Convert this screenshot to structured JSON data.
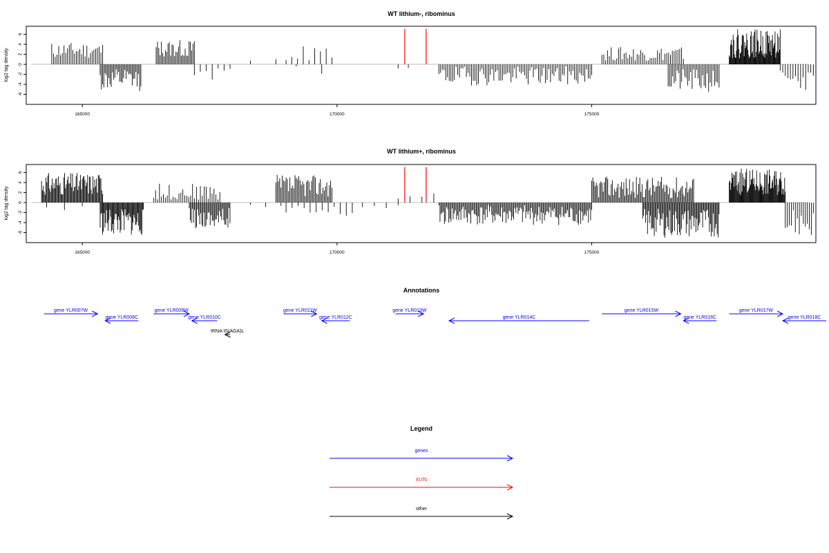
{
  "colors": {
    "genes": "#0000FF",
    "xuts": "#FF0000",
    "other": "#000000",
    "baseline": "#BEBEBE"
  },
  "chart_data": [
    {
      "type": "bar",
      "title": "WT lithium-, ribominus",
      "ylabel": "log2 tag density",
      "xlim": [
        163900,
        179400
      ],
      "ylim": [
        -8,
        7.6
      ],
      "xticks": [
        {
          "value": 165000,
          "label": "165000"
        },
        {
          "value": 170000,
          "label": "170000"
        },
        {
          "value": 175000,
          "label": "175000"
        }
      ],
      "yticks": [
        {
          "value": 6,
          "label": "6"
        },
        {
          "value": 4,
          "label": "4"
        },
        {
          "value": 2,
          "label": "2"
        },
        {
          "value": 0,
          "label": "0"
        },
        {
          "value": -2,
          "label": "-2"
        },
        {
          "value": -4,
          "label": "-4"
        },
        {
          "value": -6,
          "label": "-6"
        }
      ],
      "xut_marks": [
        171330,
        171750
      ],
      "regions": [
        {
          "start": 164400,
          "end": 165400,
          "min": 1.2,
          "max": 4.4,
          "n": 30,
          "seed": 11
        },
        {
          "start": 165350,
          "end": 166150,
          "min": -5.4,
          "max": -1.0,
          "n": 34,
          "seed": 12
        },
        {
          "start": 166450,
          "end": 167200,
          "min": 1.4,
          "max": 4.9,
          "n": 30,
          "seed": 13
        },
        {
          "start": 167200,
          "end": 167900,
          "min": -3.2,
          "max": -0.7,
          "n": 7,
          "seed": 14
        },
        {
          "start": 168300,
          "end": 168800,
          "min": 0.5,
          "max": 1.6,
          "n": 2,
          "seed": 15
        },
        {
          "start": 169000,
          "end": 169900,
          "min": 0.6,
          "max": 3.7,
          "n": 9,
          "seed": 16
        },
        {
          "start": 169200,
          "end": 169700,
          "min": -2.0,
          "max": -0.3,
          "n": 2,
          "seed": 17
        },
        {
          "start": 171200,
          "end": 171400,
          "min": -1.6,
          "max": -0.6,
          "n": 2,
          "seed": 18
        },
        {
          "start": 172000,
          "end": 175000,
          "min": -4.2,
          "max": -0.4,
          "n": 90,
          "seed": 19
        },
        {
          "start": 175200,
          "end": 176800,
          "min": 0.7,
          "max": 3.5,
          "n": 45,
          "seed": 20
        },
        {
          "start": 176500,
          "end": 177500,
          "min": -5.6,
          "max": -1.0,
          "n": 35,
          "seed": 21
        },
        {
          "start": 177700,
          "end": 178700,
          "min": 1.2,
          "max": 7.0,
          "n": 80,
          "seed": 22
        },
        {
          "start": 178700,
          "end": 179350,
          "min": -5.2,
          "max": -1.0,
          "n": 14,
          "seed": 23
        }
      ]
    },
    {
      "type": "bar",
      "title": "WT lithium+, ribominus",
      "ylabel": "log2 tag density",
      "xlim": [
        163900,
        179400
      ],
      "ylim": [
        -8,
        7.6
      ],
      "xticks": [
        {
          "value": 165000,
          "label": "165000"
        },
        {
          "value": 170000,
          "label": "170000"
        },
        {
          "value": 175000,
          "label": "175000"
        }
      ],
      "yticks": [
        {
          "value": 6,
          "label": "6"
        },
        {
          "value": 4,
          "label": "4"
        },
        {
          "value": 2,
          "label": "2"
        },
        {
          "value": 0,
          "label": "0"
        },
        {
          "value": -2,
          "label": "-2"
        },
        {
          "value": -4,
          "label": "-4"
        },
        {
          "value": -6,
          "label": "-6"
        }
      ],
      "xut_marks": [
        171330,
        171750
      ],
      "regions": [
        {
          "start": 164200,
          "end": 165400,
          "min": 1.5,
          "max": 6.0,
          "n": 70,
          "seed": 31
        },
        {
          "start": 164300,
          "end": 165000,
          "min": -1.5,
          "max": -0.3,
          "n": 3,
          "seed": 32
        },
        {
          "start": 165350,
          "end": 166200,
          "min": -6.6,
          "max": -1.2,
          "n": 55,
          "seed": 33
        },
        {
          "start": 166400,
          "end": 167700,
          "min": 0.5,
          "max": 3.8,
          "n": 35,
          "seed": 34
        },
        {
          "start": 167100,
          "end": 167900,
          "min": -5.2,
          "max": -1.0,
          "n": 40,
          "seed": 35
        },
        {
          "start": 168300,
          "end": 168900,
          "min": -1.0,
          "max": -0.3,
          "n": 3,
          "seed": 36
        },
        {
          "start": 168800,
          "end": 169900,
          "min": 1.2,
          "max": 5.6,
          "n": 45,
          "seed": 37
        },
        {
          "start": 169000,
          "end": 170300,
          "min": -3.4,
          "max": -0.4,
          "n": 12,
          "seed": 38
        },
        {
          "start": 170500,
          "end": 171200,
          "min": -1.2,
          "max": -0.3,
          "n": 4,
          "seed": 39
        },
        {
          "start": 171200,
          "end": 171900,
          "min": 0.5,
          "max": 2.5,
          "n": 4,
          "seed": 40
        },
        {
          "start": 172000,
          "end": 175000,
          "min": -4.5,
          "max": -0.5,
          "n": 140,
          "seed": 41
        },
        {
          "start": 175000,
          "end": 177000,
          "min": 0.8,
          "max": 5.2,
          "n": 90,
          "seed": 42
        },
        {
          "start": 176000,
          "end": 177500,
          "min": -7.0,
          "max": -1.2,
          "n": 80,
          "seed": 43
        },
        {
          "start": 177700,
          "end": 178800,
          "min": 1.5,
          "max": 6.8,
          "n": 85,
          "seed": 44
        },
        {
          "start": 178800,
          "end": 179350,
          "min": -7.0,
          "max": -1.0,
          "n": 15,
          "seed": 45
        }
      ]
    }
  ],
  "annotations": {
    "title": "Annotations",
    "features": [
      {
        "label": "gene YLR007W",
        "start": 164250,
        "end": 165300,
        "strand": "+",
        "row": 0,
        "kind": "gene"
      },
      {
        "label": "gene YLR008C",
        "start": 165450,
        "end": 166100,
        "strand": "-",
        "row": 1,
        "kind": "gene"
      },
      {
        "label": "gene YLR009W",
        "start": 166400,
        "end": 167100,
        "strand": "+",
        "row": 0,
        "kind": "gene"
      },
      {
        "label": "gene YLR010C",
        "start": 167150,
        "end": 167650,
        "strand": "-",
        "row": 1,
        "kind": "gene"
      },
      {
        "label": "tRNA tS(AGA)L",
        "start": 167800,
        "end": 167900,
        "strand": "-",
        "row": 2,
        "kind": "other"
      },
      {
        "label": "gene YLR011W",
        "start": 168950,
        "end": 169600,
        "strand": "+",
        "row": 0,
        "kind": "gene"
      },
      {
        "label": "gene YLR012C",
        "start": 169700,
        "end": 170250,
        "strand": "-",
        "row": 1,
        "kind": "gene"
      },
      {
        "label": "gene YLR013W",
        "start": 171150,
        "end": 171700,
        "strand": "+",
        "row": 0,
        "kind": "gene"
      },
      {
        "label": "gene YLR014C",
        "start": 172200,
        "end": 174950,
        "strand": "-",
        "row": 1,
        "kind": "gene"
      },
      {
        "label": "gene YLR015W",
        "start": 175200,
        "end": 176750,
        "strand": "+",
        "row": 0,
        "kind": "gene"
      },
      {
        "label": "gene YLR016C",
        "start": 176800,
        "end": 177450,
        "strand": "-",
        "row": 1,
        "kind": "gene"
      },
      {
        "label": "gene YLR017W",
        "start": 177700,
        "end": 178750,
        "strand": "+",
        "row": 0,
        "kind": "gene"
      },
      {
        "label": "gene YLR018C",
        "start": 178750,
        "end": 179650,
        "strand": "-",
        "row": 1,
        "kind": "gene"
      }
    ]
  },
  "legend": {
    "title": "Legend",
    "items": [
      {
        "label": "genes",
        "kind": "genes"
      },
      {
        "label": "XUTs",
        "kind": "xuts"
      },
      {
        "label": "other",
        "kind": "other"
      }
    ]
  }
}
